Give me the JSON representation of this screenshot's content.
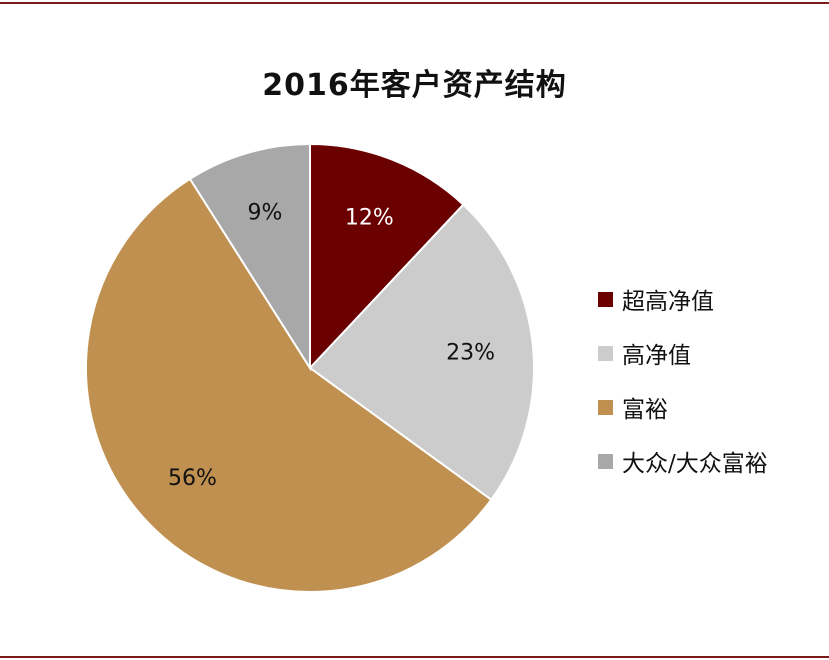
{
  "chart_data": {
    "type": "pie",
    "title": "2016年客户资产结构",
    "categories": [
      "超高净值",
      "高净值",
      "富裕",
      "大众/大众富裕"
    ],
    "values": [
      12,
      23,
      56,
      9
    ],
    "data_labels": [
      "12%",
      "23%",
      "56%",
      "9%"
    ],
    "colors": [
      "#6b0000",
      "#cccccc",
      "#c09050",
      "#a8a8a8"
    ],
    "label_colors": [
      "#ffffff",
      "#111111",
      "#111111",
      "#111111"
    ],
    "legend_position": "right"
  }
}
